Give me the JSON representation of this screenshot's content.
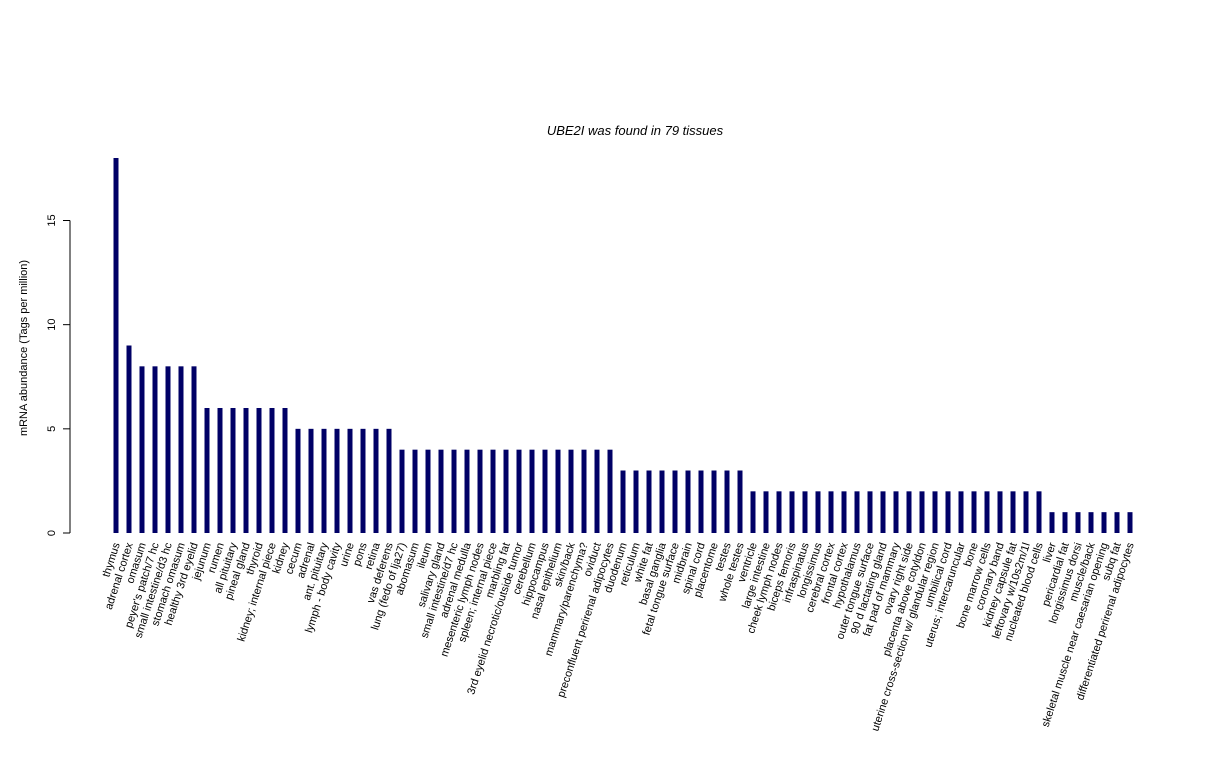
{
  "chart_data": {
    "type": "bar",
    "title": "UBE2I  was found in  79  tissues",
    "xlabel": "",
    "ylabel": "mRNA abundance (Tags per million)",
    "ylim": [
      0,
      18
    ],
    "yticks": [
      0,
      5,
      10,
      15
    ],
    "bar_color": "#000066",
    "grid": false,
    "categories": [
      "thymus",
      "adrenal cortex",
      "omasum",
      "peyer's patch/7 hc",
      "small intestine/d3 hc",
      "stomach omasum",
      "healthy 3rd eyelid",
      "jejunum",
      "rumen",
      "all pituitary",
      "pineal gland",
      "thyroid",
      "kidney; internal piece",
      "kidney",
      "cecum",
      "adrenal",
      "ant. pituitary",
      "lymph - body cavity",
      "urine",
      "pons",
      "retina",
      "vas deferens",
      "lung (fedo of lja27)",
      "abomasum",
      "ileum",
      "salivary gland",
      "small intestine/d7 hc",
      "adrenal medulla",
      "mesenteric lymph nodes",
      "spleen; internal piece",
      "marbling fat",
      "3rd eyelid necrotic/outside tumor",
      "cerebellum",
      "hippocampus",
      "nasal epithelium",
      "skin/back",
      "mammary/parenchyma?",
      "oviduct",
      "preconfluent perirenal adipocytes",
      "duodenum",
      "reticulum",
      "white fat",
      "basal ganglia",
      "fetal tongue surface",
      "midbrain",
      "spinal cord",
      "placentome",
      "testes",
      "whole testes",
      "ventricle",
      "large intestine",
      "cheek lymph nodes",
      "biceps femoris",
      "infraspinatus",
      "longissimus",
      "cerebral cortex",
      "frontal cortex",
      "hypothalamus",
      "outer tongue surface",
      "90 d lactating gland",
      "fat pad of mammary",
      "ovary right side",
      "placenta above cotyldon",
      "uterine cross-section w/ glandular region",
      "umbilical cord",
      "uterus; intercaruncular",
      "bone",
      "bone marrow cells",
      "coronary band",
      "kidney capsule fat",
      "leftovary w/10s2m/1l",
      "nucleated blood cells",
      "liver",
      "pericardial fat",
      "longissimus dorsi",
      "muscle/back",
      "skeletal muscle near caesarian opening",
      "subq fat",
      "differentiated perirenal adipocytes"
    ],
    "values": [
      18,
      9,
      8,
      8,
      8,
      8,
      8,
      6,
      6,
      6,
      6,
      6,
      6,
      6,
      5,
      5,
      5,
      5,
      5,
      5,
      5,
      5,
      4,
      4,
      4,
      4,
      4,
      4,
      4,
      4,
      4,
      4,
      4,
      4,
      4,
      4,
      4,
      4,
      4,
      3,
      3,
      3,
      3,
      3,
      3,
      3,
      3,
      3,
      3,
      2,
      2,
      2,
      2,
      2,
      2,
      2,
      2,
      2,
      2,
      2,
      2,
      2,
      2,
      2,
      2,
      2,
      2,
      2,
      2,
      2,
      2,
      2,
      1,
      1,
      1,
      1,
      1,
      1,
      1
    ]
  }
}
